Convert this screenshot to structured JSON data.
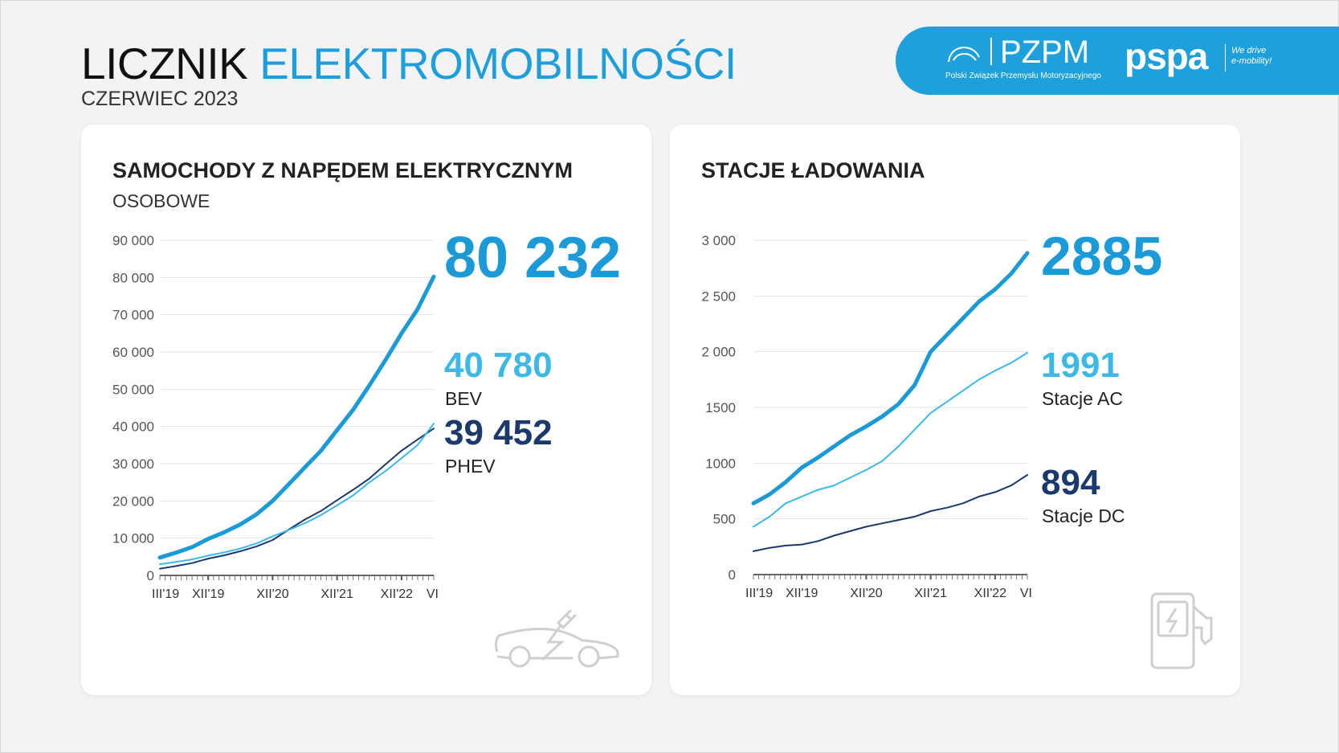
{
  "header": {
    "title_part1": "LICZNIK",
    "title_part2": "ELEKTROMOBILNOŚCI",
    "subtitle": "CZERWIEC 2023"
  },
  "logos": {
    "pzpm": "PZPM",
    "pzpm_full": "Polski Związek Przemysłu Motoryzacyjnego",
    "pspa": "pspa",
    "pspa_tagline_1": "We drive",
    "pspa_tagline_2": "e-mobility!"
  },
  "colors": {
    "accent": "#1e9fdc",
    "total": "#1a9ad6",
    "bev": "#3db9e8",
    "phev": "#1b3a6b",
    "background": "#f3f3f3",
    "icon": "#cfcfcf"
  },
  "cars": {
    "title": "SAMOCHODY Z NAPĘDEM ELEKTRYCZNYM",
    "subtitle": "OSOBOWE",
    "total": "80 232",
    "bev_value": "40 780",
    "bev_label": "BEV",
    "phev_value": "39 452",
    "phev_label": "PHEV",
    "icon": "electric-car-icon"
  },
  "stations": {
    "title": "STACJE ŁADOWANIA",
    "total": "2885",
    "ac_value": "1991",
    "ac_label": "Stacje AC",
    "dc_value": "894",
    "dc_label": "Stacje DC",
    "icon": "charging-station-icon"
  },
  "chart_data": [
    {
      "type": "line",
      "ylim": [
        0,
        90000
      ],
      "yticks": [
        {
          "v": 0,
          "label": "0"
        },
        {
          "v": 10000,
          "label": "10 000"
        },
        {
          "v": 20000,
          "label": "20 000"
        },
        {
          "v": 30000,
          "label": "30 000"
        },
        {
          "v": 40000,
          "label": "40 000"
        },
        {
          "v": 50000,
          "label": "50 000"
        },
        {
          "v": 60000,
          "label": "60 000"
        },
        {
          "v": 70000,
          "label": "70 000"
        },
        {
          "v": 80000,
          "label": "80 000"
        },
        {
          "v": 90000,
          "label": "90 000"
        }
      ],
      "xlim": [
        "2019-03",
        "2023-06"
      ],
      "xticks": [
        {
          "date": "2019-03",
          "label": "III'19"
        },
        {
          "date": "2019-12",
          "label": "XII'19"
        },
        {
          "date": "2020-12",
          "label": "XII'20"
        },
        {
          "date": "2021-12",
          "label": "XII'21"
        },
        {
          "date": "2022-12",
          "label": "XII'22"
        },
        {
          "date": "2023-06",
          "label": "VI"
        }
      ],
      "x": [
        "2019-03",
        "2019-06",
        "2019-09",
        "2019-12",
        "2020-03",
        "2020-06",
        "2020-09",
        "2020-12",
        "2021-03",
        "2021-06",
        "2021-09",
        "2021-12",
        "2022-03",
        "2022-06",
        "2022-09",
        "2022-12",
        "2023-03",
        "2023-06"
      ],
      "series": [
        {
          "key": "total",
          "values": [
            4800,
            6100,
            7600,
            9800,
            11600,
            13700,
            16400,
            20000,
            24500,
            29000,
            33500,
            39000,
            44500,
            51000,
            57800,
            65000,
            71500,
            80232
          ]
        },
        {
          "key": "bev",
          "values": [
            3000,
            3600,
            4300,
            5300,
            6200,
            7200,
            8600,
            10500,
            12200,
            14000,
            16200,
            18800,
            21500,
            25000,
            28000,
            31500,
            35000,
            40780
          ]
        },
        {
          "key": "phev",
          "values": [
            1800,
            2500,
            3300,
            4500,
            5400,
            6500,
            7800,
            9500,
            12300,
            15000,
            17300,
            20200,
            23000,
            26000,
            29800,
            33500,
            36500,
            39452
          ]
        }
      ],
      "grid": true
    },
    {
      "type": "line",
      "ylim": [
        0,
        3000
      ],
      "yticks": [
        {
          "v": 0,
          "label": "0"
        },
        {
          "v": 500,
          "label": "500"
        },
        {
          "v": 1000,
          "label": "1000"
        },
        {
          "v": 1500,
          "label": "1500"
        },
        {
          "v": 2000,
          "label": "2 000"
        },
        {
          "v": 2500,
          "label": "2 500"
        },
        {
          "v": 3000,
          "label": "3 000"
        }
      ],
      "xlim": [
        "2019-03",
        "2023-06"
      ],
      "xticks": [
        {
          "date": "2019-03",
          "label": "III'19"
        },
        {
          "date": "2019-12",
          "label": "XII'19"
        },
        {
          "date": "2020-12",
          "label": "XII'20"
        },
        {
          "date": "2021-12",
          "label": "XII'21"
        },
        {
          "date": "2022-12",
          "label": "XII'22"
        },
        {
          "date": "2023-06",
          "label": "VI"
        }
      ],
      "x": [
        "2019-03",
        "2019-06",
        "2019-09",
        "2019-12",
        "2020-03",
        "2020-06",
        "2020-09",
        "2020-12",
        "2021-03",
        "2021-06",
        "2021-09",
        "2021-12",
        "2022-03",
        "2022-06",
        "2022-09",
        "2022-12",
        "2023-03",
        "2023-06"
      ],
      "series": [
        {
          "key": "total",
          "values": [
            640,
            720,
            830,
            960,
            1050,
            1150,
            1250,
            1330,
            1420,
            1530,
            1700,
            2000,
            2150,
            2300,
            2450,
            2560,
            2700,
            2885
          ]
        },
        {
          "key": "bev",
          "values": [
            430,
            520,
            640,
            700,
            760,
            800,
            870,
            940,
            1020,
            1150,
            1300,
            1450,
            1550,
            1650,
            1750,
            1830,
            1900,
            1991
          ]
        },
        {
          "key": "phev",
          "values": [
            210,
            240,
            260,
            270,
            300,
            350,
            390,
            430,
            460,
            490,
            520,
            570,
            600,
            640,
            700,
            740,
            800,
            894
          ]
        }
      ],
      "grid": true
    }
  ]
}
